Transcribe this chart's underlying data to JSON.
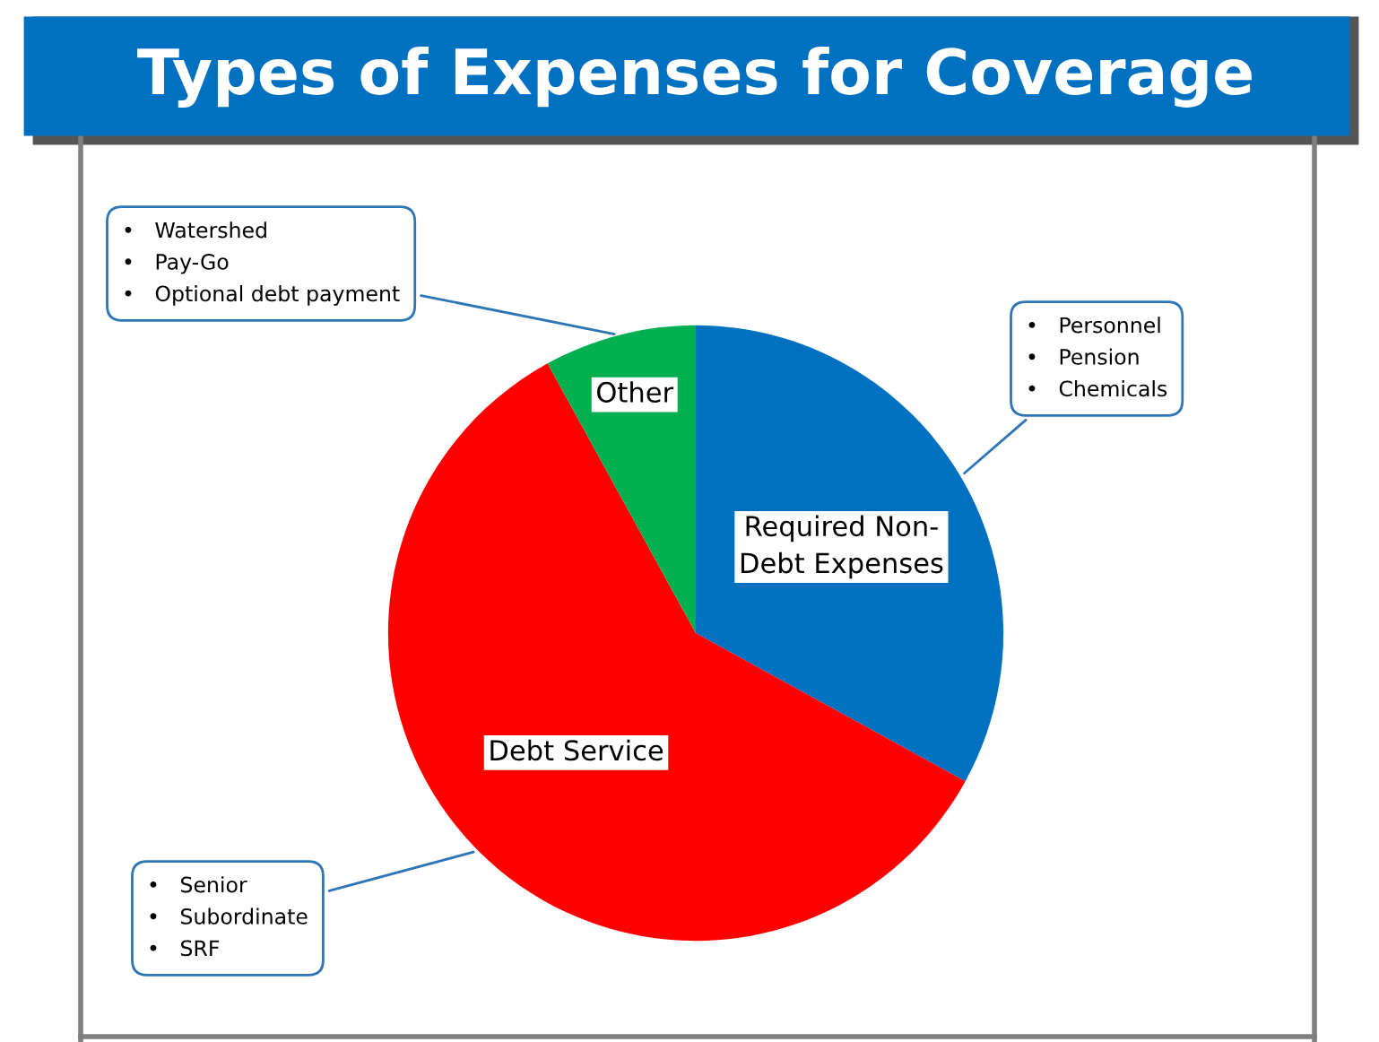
{
  "chart_data": {
    "type": "pie",
    "title": "Types of Expenses for Coverage",
    "categories": [
      "Required Non-\nDebt Expenses",
      "Debt Service",
      "Other"
    ],
    "values": [
      33,
      59,
      8
    ],
    "colors": [
      "#0070c0",
      "#ff0000",
      "#00b050"
    ],
    "annotations": [
      {
        "text": "•   Personnel\n•   Pension\n•   Chemicals",
        "x": "Required Non-\nDebt Expenses"
      },
      {
        "text": "•   Senior\n•   Subordinate\n•   SRF",
        "x": "Debt Service"
      },
      {
        "text": "•   Watershed\n•   Pay-Go\n•   Optional debt payment",
        "x": "Other"
      }
    ]
  }
}
